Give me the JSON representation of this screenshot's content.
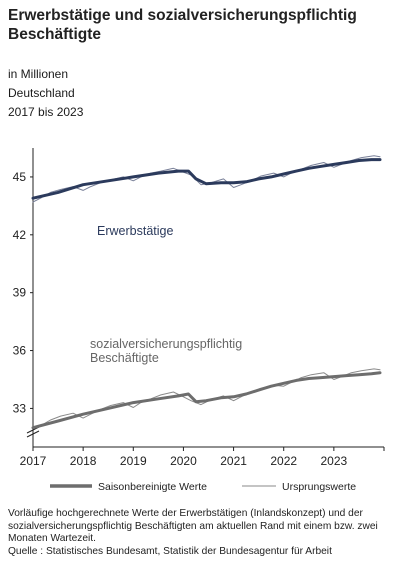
{
  "header": {
    "title": "Erwerbstätige und sozialversicherungspflichtig Beschäftigte",
    "unit": "in Millionen",
    "region": "Deutschland",
    "period": "2017 bis 2023"
  },
  "footer": {
    "note": "Vorläufige hochgerechnete Werte der Erwerbstätigen (Inlandskonzept) und der sozialversicherungspflichtig Beschäftigten am aktuellen Rand mit einem bzw. zwei Monaten Wartezeit.",
    "source": "Quelle : Statistisches Bundesamt, Statistik der Bundesagentur für Arbeit"
  },
  "colors": {
    "erwerbstaetige_sa": "#2b3a5c",
    "erwerbstaetige_raw": "#7a8199",
    "svb_sa": "#6d6d6d",
    "svb_raw": "#8a8a8a",
    "axis": "#222222",
    "grid": "#e8e8e8"
  },
  "chart_data": {
    "type": "line",
    "x_unit": "year",
    "xlim": [
      2017,
      2024
    ],
    "x_ticks": [
      2017,
      2018,
      2019,
      2020,
      2021,
      2022,
      2023
    ],
    "x_tick_labels": [
      "2017",
      "2018",
      "2019",
      "2020",
      "2021",
      "2022",
      "2023"
    ],
    "ylim": [
      31,
      46.5
    ],
    "y_ticks": [
      33,
      36,
      39,
      42,
      45
    ],
    "y_tick_labels": [
      "33",
      "36",
      "39",
      "42",
      "45"
    ],
    "axis_break": true,
    "grid": false,
    "legend_position": "bottom",
    "legend": [
      "Saisonbereinigte Werte",
      "Ursprungswerte"
    ],
    "annotations": [
      "Erwerbstätige",
      "sozialversicherungspflichtig",
      "Beschäftigte"
    ],
    "series": [
      {
        "name": "Erwerbstätige",
        "kind": "Saisonbereinigte Werte",
        "x": [
          2017.0,
          2017.5,
          2018.0,
          2018.5,
          2019.0,
          2019.5,
          2019.9,
          2020.1,
          2020.25,
          2020.45,
          2020.75,
          2021.0,
          2021.25,
          2021.5,
          2021.75,
          2022.0,
          2022.25,
          2022.5,
          2022.75,
          2023.0,
          2023.25,
          2023.5,
          2023.75,
          2023.92
        ],
        "y": [
          43.9,
          44.2,
          44.6,
          44.8,
          45.0,
          45.2,
          45.3,
          45.3,
          44.9,
          44.65,
          44.7,
          44.7,
          44.75,
          44.9,
          45.0,
          45.15,
          45.3,
          45.45,
          45.55,
          45.65,
          45.75,
          45.85,
          45.9,
          45.9
        ]
      },
      {
        "name": "Erwerbstätige",
        "kind": "Ursprungswerte",
        "x": [
          2017.0,
          2017.15,
          2017.35,
          2017.55,
          2017.8,
          2018.0,
          2018.15,
          2018.35,
          2018.55,
          2018.8,
          2019.0,
          2019.15,
          2019.35,
          2019.55,
          2019.8,
          2020.0,
          2020.15,
          2020.35,
          2020.55,
          2020.8,
          2021.0,
          2021.15,
          2021.35,
          2021.55,
          2021.8,
          2022.0,
          2022.15,
          2022.35,
          2022.55,
          2022.8,
          2023.0,
          2023.15,
          2023.35,
          2023.55,
          2023.8,
          2023.92
        ],
        "y": [
          43.7,
          43.9,
          44.2,
          44.35,
          44.5,
          44.3,
          44.5,
          44.7,
          44.85,
          45.0,
          44.8,
          45.0,
          45.2,
          45.3,
          45.45,
          45.25,
          45.1,
          44.6,
          44.7,
          44.9,
          44.45,
          44.6,
          44.8,
          45.05,
          45.2,
          45.0,
          45.2,
          45.4,
          45.6,
          45.75,
          45.5,
          45.65,
          45.85,
          46.0,
          46.1,
          46.05
        ]
      },
      {
        "name": "sozialversicherungspflichtig Beschäftigte",
        "kind": "Saisonbereinigte Werte",
        "x": [
          2017.0,
          2017.5,
          2018.0,
          2018.5,
          2019.0,
          2019.5,
          2019.9,
          2020.1,
          2020.25,
          2020.45,
          2020.75,
          2021.0,
          2021.25,
          2021.5,
          2021.75,
          2022.0,
          2022.25,
          2022.5,
          2022.75,
          2023.0,
          2023.25,
          2023.5,
          2023.75,
          2023.92
        ],
        "y": [
          32.0,
          32.35,
          32.7,
          33.0,
          33.3,
          33.5,
          33.65,
          33.75,
          33.35,
          33.4,
          33.55,
          33.6,
          33.75,
          33.95,
          34.15,
          34.3,
          34.45,
          34.55,
          34.6,
          34.65,
          34.7,
          34.75,
          34.8,
          34.85
        ]
      },
      {
        "name": "sozialversicherungspflichtig Beschäftigte",
        "kind": "Ursprungswerte",
        "x": [
          2017.0,
          2017.15,
          2017.35,
          2017.55,
          2017.8,
          2018.0,
          2018.15,
          2018.35,
          2018.55,
          2018.8,
          2019.0,
          2019.15,
          2019.35,
          2019.55,
          2019.8,
          2020.0,
          2020.15,
          2020.35,
          2020.55,
          2020.8,
          2021.0,
          2021.15,
          2021.35,
          2021.55,
          2021.8,
          2022.0,
          2022.15,
          2022.35,
          2022.55,
          2022.8,
          2023.0,
          2023.15,
          2023.35,
          2023.55,
          2023.8,
          2023.92
        ],
        "y": [
          31.95,
          32.1,
          32.4,
          32.6,
          32.75,
          32.5,
          32.7,
          32.95,
          33.15,
          33.3,
          33.05,
          33.3,
          33.5,
          33.7,
          33.85,
          33.6,
          33.4,
          33.2,
          33.45,
          33.65,
          33.4,
          33.6,
          33.85,
          34.05,
          34.2,
          34.15,
          34.35,
          34.6,
          34.75,
          34.85,
          34.5,
          34.65,
          34.85,
          34.95,
          35.05,
          35.0
        ]
      }
    ]
  }
}
